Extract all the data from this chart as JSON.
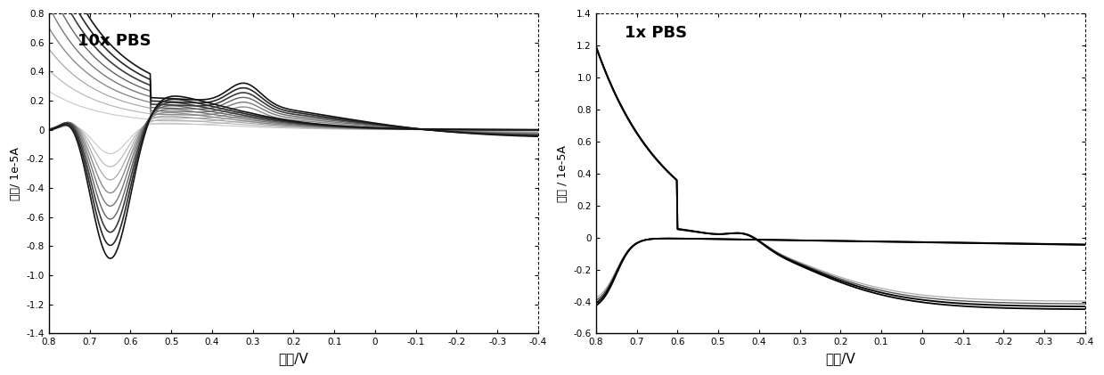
{
  "plot1_title": "10x PBS",
  "plot2_title": "1x PBS",
  "xlabel": "电位/V",
  "ylabel1": "电流/ 1e-5A",
  "ylabel2": "电流 / 1e-5A",
  "plot1_xlim": [
    0.8,
    -0.4
  ],
  "plot1_ylim": [
    -1.4,
    0.8
  ],
  "plot2_xlim": [
    0.8,
    -0.4
  ],
  "plot2_ylim": [
    -0.6,
    1.4
  ],
  "plot1_xticks": [
    0.8,
    0.7,
    0.6,
    0.5,
    0.4,
    0.3,
    0.2,
    0.1,
    0.0,
    -0.1,
    -0.2,
    -0.3,
    -0.4
  ],
  "plot1_yticks": [
    -1.4,
    -1.2,
    -1.0,
    -0.8,
    -0.6,
    -0.4,
    -0.2,
    0.0,
    0.2,
    0.4,
    0.6,
    0.8
  ],
  "plot2_xticks": [
    0.8,
    0.7,
    0.6,
    0.5,
    0.4,
    0.3,
    0.2,
    0.1,
    0.0,
    -0.1,
    -0.2,
    -0.3,
    -0.4
  ],
  "plot2_yticks": [
    -0.6,
    -0.4,
    -0.2,
    0.0,
    0.2,
    0.4,
    0.6,
    0.8,
    1.0,
    1.2,
    1.4
  ],
  "bg_color": "#ffffff",
  "num_cycles_plot1": 9,
  "num_cycles_plot2": 4
}
